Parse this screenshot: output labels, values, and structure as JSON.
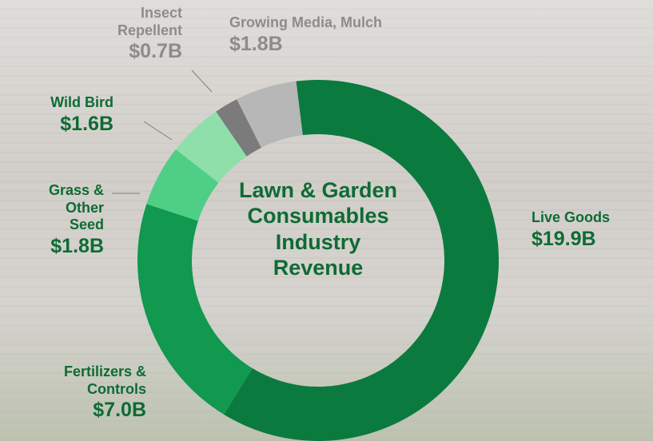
{
  "chart_data": {
    "type": "pie",
    "donut": true,
    "title": "Lawn & Garden Consumables Industry Revenue",
    "categories": [
      "Live Goods",
      "Fertilizers & Controls",
      "Grass & Other Seed",
      "Wild Bird",
      "Insect Repellent",
      "Growing Media, Mulch"
    ],
    "values": [
      19.9,
      7.0,
      1.8,
      1.6,
      0.7,
      1.8
    ],
    "value_labels": [
      "$19.9B",
      "$7.0B",
      "$1.8B",
      "$1.6B",
      "$0.7B",
      "$1.8B"
    ],
    "colors": [
      "#0b7a3e",
      "#10994f",
      "#4fce86",
      "#8fdfab",
      "#7b7b7b",
      "#b7b7b7"
    ]
  }
}
